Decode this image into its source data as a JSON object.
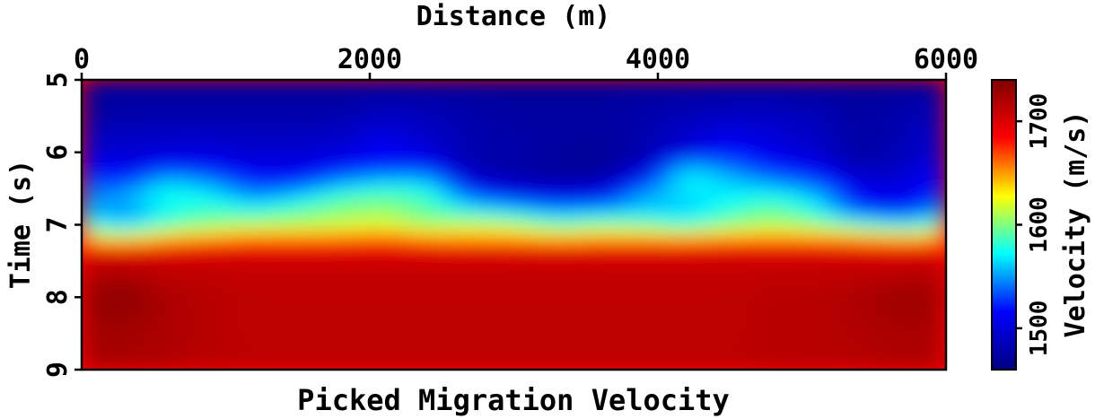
{
  "chart_data": {
    "type": "heatmap",
    "title": "Picked Migration Velocity",
    "xlabel": "Distance (m)",
    "ylabel": "Time (s)",
    "xlim": [
      0,
      6000
    ],
    "ylim": [
      5,
      9
    ],
    "x_axis_position": "top",
    "y_axis_inverted": true,
    "x_ticks": [
      0,
      2000,
      4000,
      6000
    ],
    "y_ticks": [
      5,
      6,
      7,
      8,
      9
    ],
    "colorbar": {
      "label": "Velocity (m/s)",
      "ticks": [
        1500,
        1600,
        1700
      ],
      "range": [
        1460,
        1740
      ],
      "colormap": [
        "#7f0000",
        "#ff0000",
        "#ffff00",
        "#00ffff",
        "#0000ff",
        "#00007f"
      ],
      "placement": "right"
    },
    "distance_samples_m": [
      0,
      300,
      600,
      900,
      1200,
      1500,
      1800,
      2100,
      2400,
      2700,
      3000,
      3300,
      3600,
      3900,
      4200,
      4500,
      4800,
      5100,
      5400,
      5700,
      6000
    ],
    "time_samples_s": [
      5.0,
      5.5,
      6.0,
      6.2,
      6.4,
      6.6,
      6.8,
      7.0,
      7.2,
      7.4,
      7.6,
      8.0,
      8.5,
      9.0
    ],
    "velocity_mps": [
      [
        1470,
        1470,
        1470,
        1470,
        1470,
        1470,
        1470,
        1470,
        1470,
        1470,
        1470,
        1470,
        1470,
        1470,
        1470,
        1470,
        1470,
        1470,
        1470,
        1470,
        1470
      ],
      [
        1475,
        1480,
        1480,
        1480,
        1480,
        1480,
        1480,
        1490,
        1485,
        1480,
        1475,
        1475,
        1475,
        1480,
        1485,
        1490,
        1490,
        1485,
        1475,
        1480,
        1490
      ],
      [
        1500,
        1495,
        1500,
        1500,
        1495,
        1495,
        1500,
        1515,
        1500,
        1480,
        1480,
        1475,
        1470,
        1480,
        1500,
        1520,
        1505,
        1495,
        1475,
        1485,
        1500
      ],
      [
        1515,
        1505,
        1520,
        1515,
        1505,
        1505,
        1515,
        1520,
        1520,
        1480,
        1475,
        1470,
        1470,
        1490,
        1560,
        1540,
        1520,
        1510,
        1480,
        1490,
        1510
      ],
      [
        1530,
        1525,
        1560,
        1545,
        1520,
        1520,
        1545,
        1560,
        1560,
        1500,
        1485,
        1480,
        1480,
        1520,
        1575,
        1560,
        1545,
        1530,
        1500,
        1500,
        1520
      ],
      [
        1540,
        1555,
        1580,
        1570,
        1545,
        1560,
        1585,
        1590,
        1585,
        1535,
        1515,
        1505,
        1510,
        1555,
        1565,
        1570,
        1575,
        1560,
        1510,
        1505,
        1530
      ],
      [
        1560,
        1545,
        1570,
        1585,
        1575,
        1590,
        1600,
        1605,
        1590,
        1570,
        1560,
        1545,
        1550,
        1560,
        1560,
        1580,
        1595,
        1575,
        1525,
        1515,
        1550
      ],
      [
        1580,
        1560,
        1590,
        1600,
        1610,
        1610,
        1615,
        1620,
        1605,
        1615,
        1610,
        1590,
        1600,
        1595,
        1580,
        1600,
        1610,
        1600,
        1585,
        1570,
        1590
      ],
      [
        1640,
        1630,
        1645,
        1655,
        1660,
        1660,
        1660,
        1665,
        1655,
        1650,
        1650,
        1645,
        1650,
        1650,
        1650,
        1655,
        1655,
        1655,
        1650,
        1645,
        1650
      ],
      [
        1700,
        1700,
        1700,
        1700,
        1700,
        1700,
        1700,
        1700,
        1700,
        1700,
        1700,
        1700,
        1700,
        1700,
        1700,
        1700,
        1700,
        1700,
        1700,
        1700,
        1700
      ],
      [
        1715,
        1715,
        1710,
        1710,
        1710,
        1710,
        1710,
        1710,
        1710,
        1710,
        1710,
        1710,
        1710,
        1710,
        1710,
        1710,
        1710,
        1710,
        1710,
        1710,
        1715
      ],
      [
        1730,
        1735,
        1720,
        1715,
        1712,
        1712,
        1712,
        1712,
        1712,
        1712,
        1712,
        1712,
        1712,
        1712,
        1712,
        1712,
        1715,
        1715,
        1720,
        1728,
        1725
      ],
      [
        1725,
        1725,
        1720,
        1715,
        1712,
        1712,
        1712,
        1712,
        1712,
        1712,
        1712,
        1712,
        1712,
        1712,
        1712,
        1712,
        1715,
        1715,
        1718,
        1722,
        1720
      ],
      [
        1722,
        1720,
        1718,
        1715,
        1714,
        1714,
        1714,
        1714,
        1714,
        1714,
        1714,
        1714,
        1714,
        1714,
        1714,
        1714,
        1715,
        1715,
        1716,
        1718,
        1718
      ]
    ]
  }
}
